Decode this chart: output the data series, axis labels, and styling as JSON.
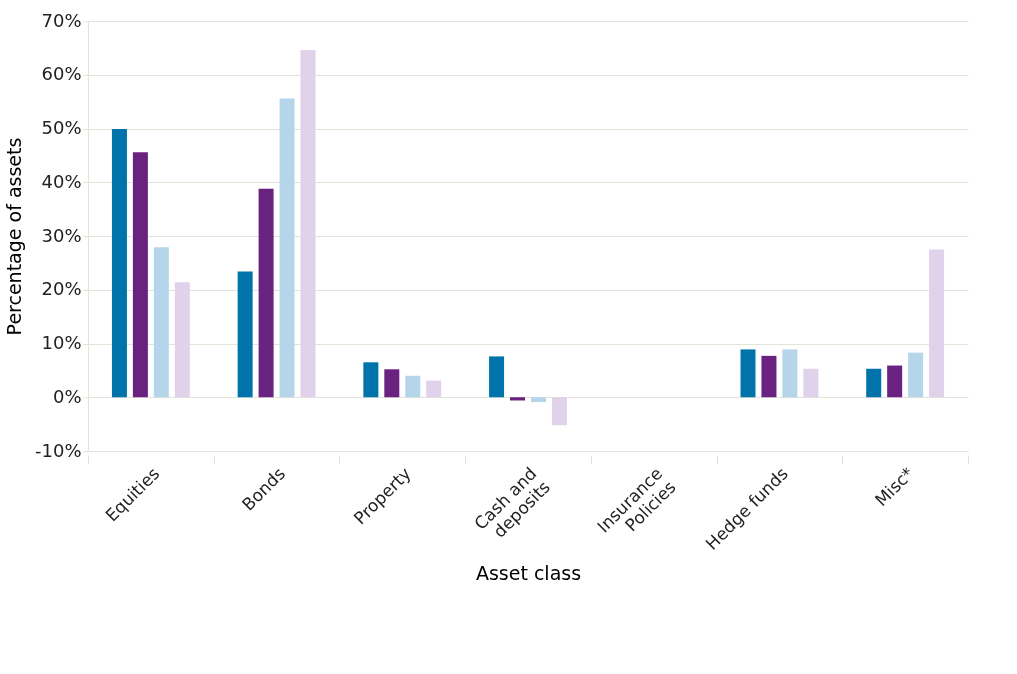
{
  "chart_data": {
    "type": "bar",
    "xlabel": "Asset class",
    "ylabel": "Percentage of assets",
    "categories": [
      "Equities",
      "Bonds",
      "Property",
      "Cash and deposits",
      "Insurance Policies",
      "Hedge funds",
      "Misc*"
    ],
    "series": [
      {
        "color": "#0073aa",
        "values": [
          49.9,
          23.4,
          6.5,
          7.6,
          null,
          8.9,
          5.3
        ]
      },
      {
        "color": "#69227f",
        "values": [
          45.6,
          38.8,
          5.2,
          -0.6,
          null,
          7.7,
          5.9
        ]
      },
      {
        "color": "#b5d5ea",
        "values": [
          27.9,
          55.6,
          4.0,
          -0.9,
          null,
          8.9,
          8.3
        ]
      },
      {
        "color": "#dfd2ea",
        "values": [
          21.4,
          64.6,
          3.1,
          -5.2,
          null,
          5.3,
          27.5
        ]
      }
    ],
    "ylim": [
      -10,
      70
    ],
    "yticks": [
      {
        "value": -10,
        "label": "-10%"
      },
      {
        "value": 0,
        "label": "0%"
      },
      {
        "value": 10,
        "label": "10%"
      },
      {
        "value": 20,
        "label": "20%"
      },
      {
        "value": 30,
        "label": "30%"
      },
      {
        "value": 40,
        "label": "40%"
      },
      {
        "value": 50,
        "label": "50%"
      },
      {
        "value": 60,
        "label": "60%"
      },
      {
        "value": 70,
        "label": "70%"
      }
    ],
    "grid": "y"
  }
}
